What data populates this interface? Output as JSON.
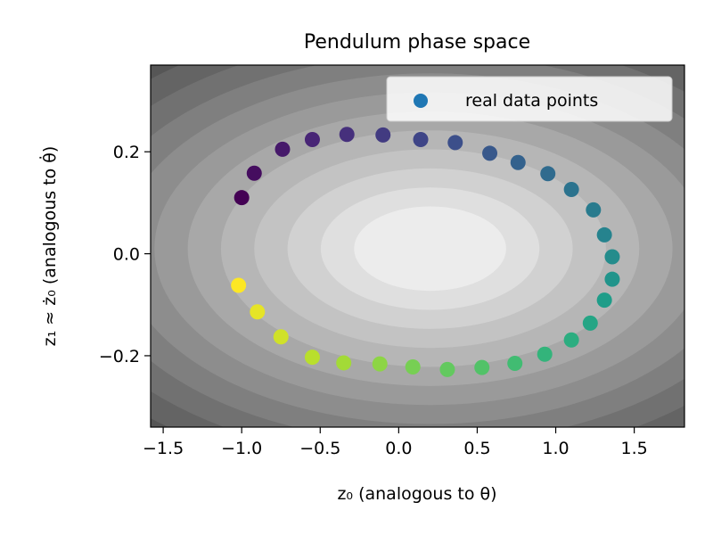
{
  "chart_data": {
    "type": "scatter",
    "title": "Pendulum phase space",
    "xlabel": "z₀ (analogous to θ)",
    "ylabel": "z₁ ≈ ż₀ (analogous to θ̇)",
    "xlim": [
      -1.58,
      1.82
    ],
    "ylim": [
      -0.34,
      0.37
    ],
    "x_ticks": [
      "−1.5",
      "−1.0",
      "−0.5",
      "0.0",
      "0.5",
      "1.0",
      "1.5"
    ],
    "x_tick_values": [
      -1.5,
      -1.0,
      -0.5,
      0.0,
      0.5,
      1.0,
      1.5
    ],
    "y_ticks": [
      "−0.2",
      "0.0",
      "0.2"
    ],
    "y_tick_values": [
      -0.2,
      0.0,
      0.2
    ],
    "grid": false,
    "legend_position": "top-right",
    "colormap": "viridis",
    "background": "grayscale filled contours, lightest near center",
    "contour_center": [
      0.2,
      0.01
    ],
    "series": [
      {
        "name": "real data points",
        "color": "#1f77b4",
        "x": [
          -1.0,
          -0.92,
          -0.74,
          -0.55,
          -0.33,
          -0.1,
          0.14,
          0.36,
          0.58,
          0.76,
          0.95,
          1.1,
          1.24,
          1.31,
          1.36,
          1.36,
          1.31,
          1.22,
          1.1,
          0.93,
          0.74,
          0.53,
          0.31,
          0.09,
          -0.12,
          -0.35,
          -0.55,
          -0.75,
          -0.9,
          -1.02
        ],
        "y": [
          0.11,
          0.158,
          0.205,
          0.224,
          0.234,
          0.233,
          0.224,
          0.218,
          0.197,
          0.179,
          0.157,
          0.126,
          0.086,
          0.037,
          -0.006,
          -0.05,
          -0.091,
          -0.136,
          -0.169,
          -0.197,
          -0.215,
          -0.223,
          -0.227,
          -0.222,
          -0.216,
          -0.214,
          -0.203,
          -0.163,
          -0.114,
          -0.062
        ]
      }
    ]
  }
}
